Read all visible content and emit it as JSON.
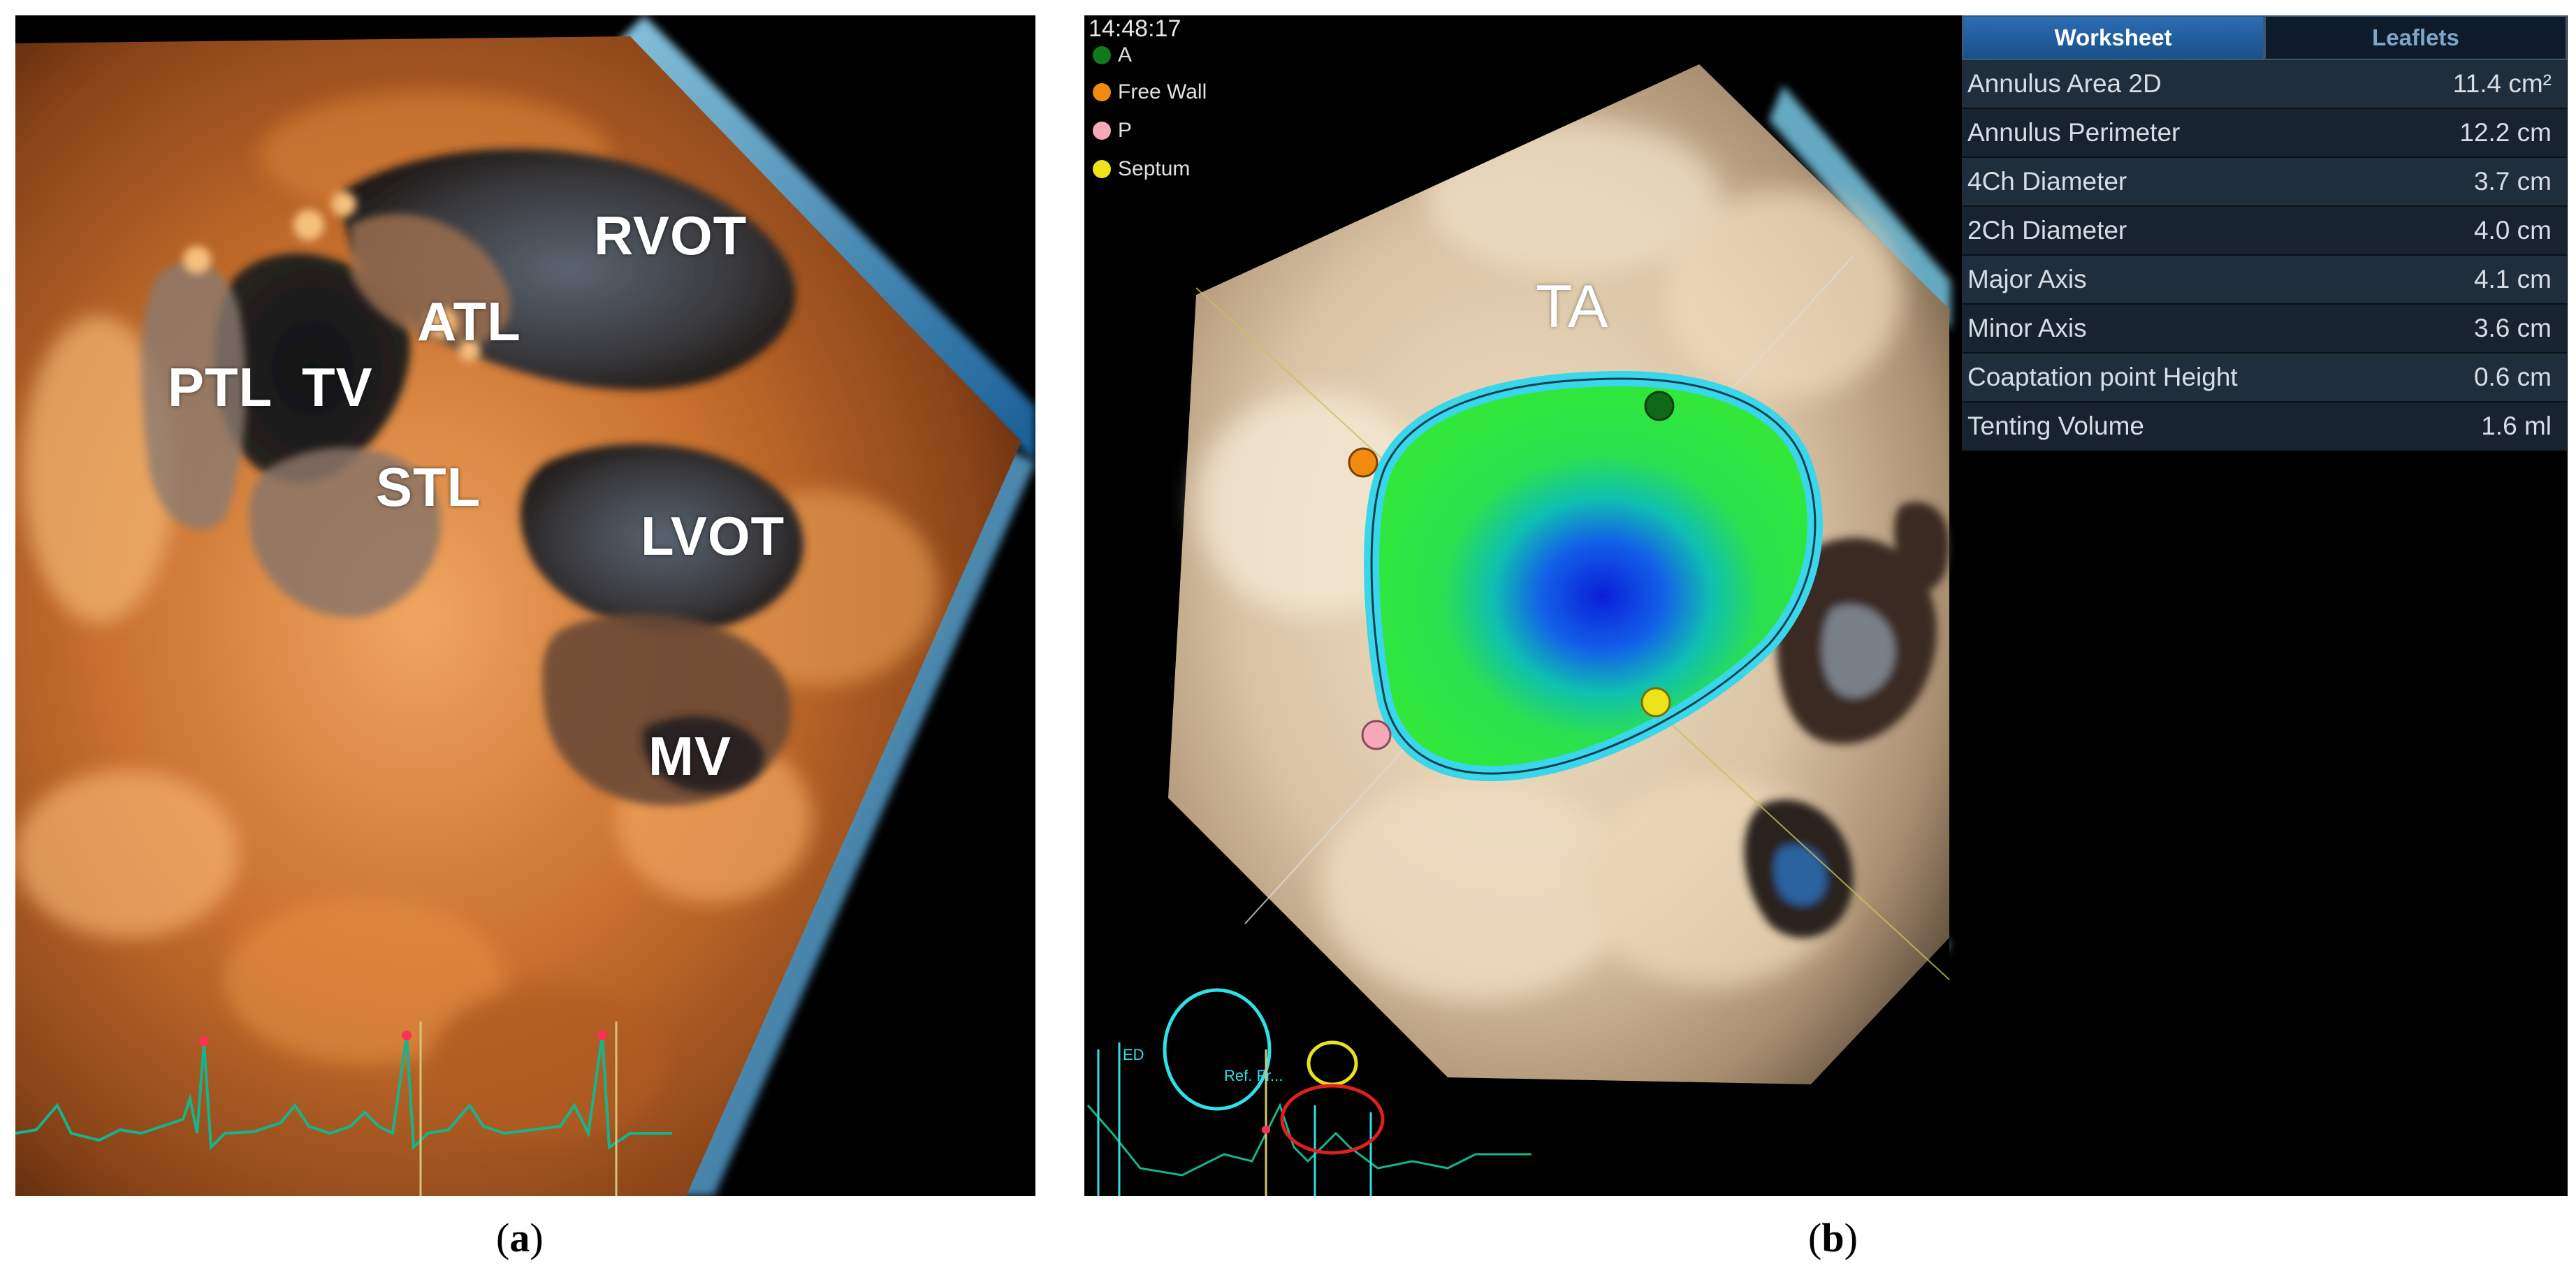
{
  "panel_a": {
    "labels": {
      "rvot": "RVOT",
      "atl": "ATL",
      "ptl": "PTL",
      "tv": "TV",
      "stl": "STL",
      "lvot": "LVOT",
      "mv": "MV"
    },
    "caption": {
      "open": "(",
      "letter": "a",
      "close": ")"
    }
  },
  "panel_b": {
    "timestamp": "14:48:17",
    "legend": [
      {
        "label": "A",
        "color": "#0f7a1a"
      },
      {
        "label": "Free Wall",
        "color": "#f08a10"
      },
      {
        "label": "P",
        "color": "#f5a8b8"
      },
      {
        "label": "Septum",
        "color": "#f0e21a"
      }
    ],
    "ta_label": "TA",
    "ecg_tags": {
      "ed": "ED",
      "ref": "Ref. Fr..."
    },
    "worksheet": {
      "tabs": [
        {
          "label": "Worksheet",
          "active": true
        },
        {
          "label": "Leaflets",
          "active": false
        }
      ],
      "rows": [
        {
          "label": "Annulus Area 2D",
          "value": "11.4 cm²"
        },
        {
          "label": "Annulus Perimeter",
          "value": "12.2 cm"
        },
        {
          "label": "4Ch Diameter",
          "value": "3.7 cm"
        },
        {
          "label": "2Ch Diameter",
          "value": "4.0 cm"
        },
        {
          "label": "Major Axis",
          "value": "4.1 cm"
        },
        {
          "label": "Minor Axis",
          "value": "3.6 cm"
        },
        {
          "label": "Coaptation point Height",
          "value": "0.6 cm"
        },
        {
          "label": "Tenting Volume",
          "value": "1.6 ml"
        }
      ]
    },
    "caption": {
      "open": "(",
      "letter": "b",
      "close": ")"
    }
  }
}
